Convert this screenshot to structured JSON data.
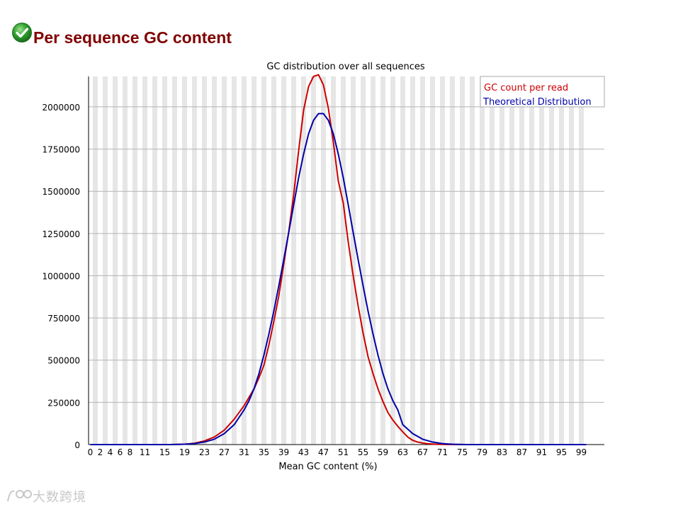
{
  "page": {
    "title": "Per sequence GC content",
    "status_icon": "check-icon",
    "status_color": "#2e9e2e",
    "title_color": "#800000"
  },
  "chart_data": {
    "type": "line",
    "title": "GC distribution over all sequences",
    "xlabel": "Mean GC content (%)",
    "ylabel": "",
    "xlim": [
      0,
      100
    ],
    "ylim": [
      0,
      2180000
    ],
    "x_ticks": [
      "0",
      "2",
      "4",
      "6",
      "8",
      "11",
      "15",
      "19",
      "23",
      "27",
      "31",
      "35",
      "39",
      "43",
      "47",
      "51",
      "55",
      "59",
      "63",
      "67",
      "71",
      "75",
      "79",
      "83",
      "87",
      "91",
      "95",
      "99"
    ],
    "y_ticks": [
      0,
      250000,
      500000,
      750000,
      1000000,
      1250000,
      1500000,
      1750000,
      2000000
    ],
    "grid": true,
    "legend_position": "top-right",
    "series": [
      {
        "name": "GC count per read",
        "color": "#cc0000",
        "points": [
          [
            0,
            0
          ],
          [
            16,
            0
          ],
          [
            19,
            2000
          ],
          [
            21,
            8000
          ],
          [
            23,
            22000
          ],
          [
            25,
            45000
          ],
          [
            27,
            85000
          ],
          [
            29,
            150000
          ],
          [
            31,
            230000
          ],
          [
            33,
            330000
          ],
          [
            34,
            395000
          ],
          [
            35,
            470000
          ],
          [
            36,
            590000
          ],
          [
            37,
            730000
          ],
          [
            38,
            880000
          ],
          [
            39,
            1070000
          ],
          [
            40,
            1260000
          ],
          [
            41,
            1480000
          ],
          [
            42,
            1740000
          ],
          [
            43,
            1980000
          ],
          [
            44,
            2120000
          ],
          [
            45,
            2180000
          ],
          [
            46,
            2190000
          ],
          [
            47,
            2130000
          ],
          [
            48,
            1990000
          ],
          [
            49,
            1790000
          ],
          [
            50,
            1560000
          ],
          [
            51,
            1430000
          ],
          [
            52,
            1200000
          ],
          [
            53,
            1000000
          ],
          [
            54,
            820000
          ],
          [
            55,
            660000
          ],
          [
            56,
            520000
          ],
          [
            57,
            420000
          ],
          [
            58,
            330000
          ],
          [
            59,
            255000
          ],
          [
            60,
            190000
          ],
          [
            61,
            145000
          ],
          [
            62,
            108000
          ],
          [
            63,
            75000
          ],
          [
            64,
            45000
          ],
          [
            65,
            25000
          ],
          [
            66,
            15000
          ],
          [
            67,
            9000
          ],
          [
            68,
            5000
          ],
          [
            69,
            3000
          ],
          [
            70,
            1500
          ],
          [
            72,
            500
          ],
          [
            75,
            0
          ],
          [
            100,
            0
          ]
        ]
      },
      {
        "name": "Theoretical Distribution",
        "color": "#0000aa",
        "points": [
          [
            0,
            0
          ],
          [
            16,
            0
          ],
          [
            19,
            2000
          ],
          [
            21,
            6000
          ],
          [
            23,
            15000
          ],
          [
            25,
            32000
          ],
          [
            27,
            65000
          ],
          [
            29,
            118000
          ],
          [
            31,
            205000
          ],
          [
            32,
            260000
          ],
          [
            33,
            330000
          ],
          [
            34,
            420000
          ],
          [
            35,
            530000
          ],
          [
            36,
            655000
          ],
          [
            37,
            790000
          ],
          [
            38,
            940000
          ],
          [
            39,
            1095000
          ],
          [
            40,
            1255000
          ],
          [
            41,
            1420000
          ],
          [
            42,
            1580000
          ],
          [
            43,
            1720000
          ],
          [
            44,
            1840000
          ],
          [
            45,
            1920000
          ],
          [
            46,
            1960000
          ],
          [
            47,
            1960000
          ],
          [
            48,
            1920000
          ],
          [
            49,
            1840000
          ],
          [
            50,
            1720000
          ],
          [
            51,
            1580000
          ],
          [
            52,
            1420000
          ],
          [
            53,
            1255000
          ],
          [
            54,
            1095000
          ],
          [
            55,
            940000
          ],
          [
            56,
            790000
          ],
          [
            57,
            655000
          ],
          [
            58,
            530000
          ],
          [
            59,
            420000
          ],
          [
            60,
            330000
          ],
          [
            61,
            260000
          ],
          [
            62,
            205000
          ],
          [
            63,
            118000
          ],
          [
            65,
            65000
          ],
          [
            67,
            32000
          ],
          [
            69,
            15000
          ],
          [
            71,
            6000
          ],
          [
            73,
            2000
          ],
          [
            76,
            0
          ],
          [
            100,
            0
          ]
        ]
      }
    ]
  },
  "watermark": {
    "text": "大数跨境"
  }
}
